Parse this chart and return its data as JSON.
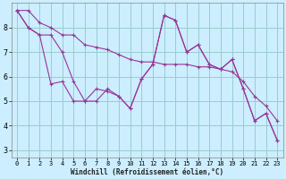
{
  "xlabel": "Windchill (Refroidissement éolien,°C)",
  "bg_color": "#cceeff",
  "grid_color": "#99cccc",
  "line_color": "#993399",
  "xlim": [
    -0.5,
    23.5
  ],
  "ylim": [
    2.7,
    9.0
  ],
  "xticks": [
    0,
    1,
    2,
    3,
    4,
    5,
    6,
    7,
    8,
    9,
    10,
    11,
    12,
    13,
    14,
    15,
    16,
    17,
    18,
    19,
    20,
    21,
    22,
    23
  ],
  "yticks": [
    3,
    4,
    5,
    6,
    7,
    8
  ],
  "line1_x": [
    0,
    1,
    2,
    3,
    4,
    5,
    6,
    7,
    8,
    9,
    10,
    11,
    12,
    13,
    14,
    15,
    16,
    17,
    18,
    19,
    20,
    21,
    22,
    23
  ],
  "line1_y": [
    8.7,
    8.0,
    7.7,
    5.7,
    5.8,
    5.0,
    5.0,
    5.5,
    5.4,
    5.2,
    4.7,
    5.9,
    6.5,
    8.5,
    8.3,
    7.0,
    7.3,
    6.5,
    6.3,
    6.7,
    5.5,
    4.2,
    4.5,
    3.4
  ],
  "line2_x": [
    0,
    1,
    2,
    3,
    4,
    5,
    6,
    7,
    8,
    9,
    10,
    11,
    12,
    13,
    14,
    15,
    16,
    17,
    18,
    19,
    20,
    21,
    22,
    23
  ],
  "line2_y": [
    8.7,
    8.7,
    8.2,
    8.0,
    7.7,
    7.7,
    7.3,
    7.2,
    7.1,
    6.9,
    6.7,
    6.6,
    6.6,
    6.5,
    6.5,
    6.5,
    6.4,
    6.4,
    6.3,
    6.2,
    5.8,
    5.2,
    4.8,
    4.2
  ],
  "line3_x": [
    0,
    1,
    2,
    3,
    4,
    5,
    6,
    7,
    8,
    9,
    10,
    11,
    12,
    13,
    14,
    15,
    16,
    17,
    18,
    19,
    20,
    21,
    22,
    23
  ],
  "line3_y": [
    8.7,
    8.0,
    7.7,
    7.7,
    7.0,
    5.8,
    5.0,
    5.0,
    5.5,
    5.2,
    4.7,
    5.9,
    6.5,
    8.5,
    8.3,
    7.0,
    7.3,
    6.5,
    6.3,
    6.7,
    5.5,
    4.2,
    4.5,
    3.4
  ]
}
